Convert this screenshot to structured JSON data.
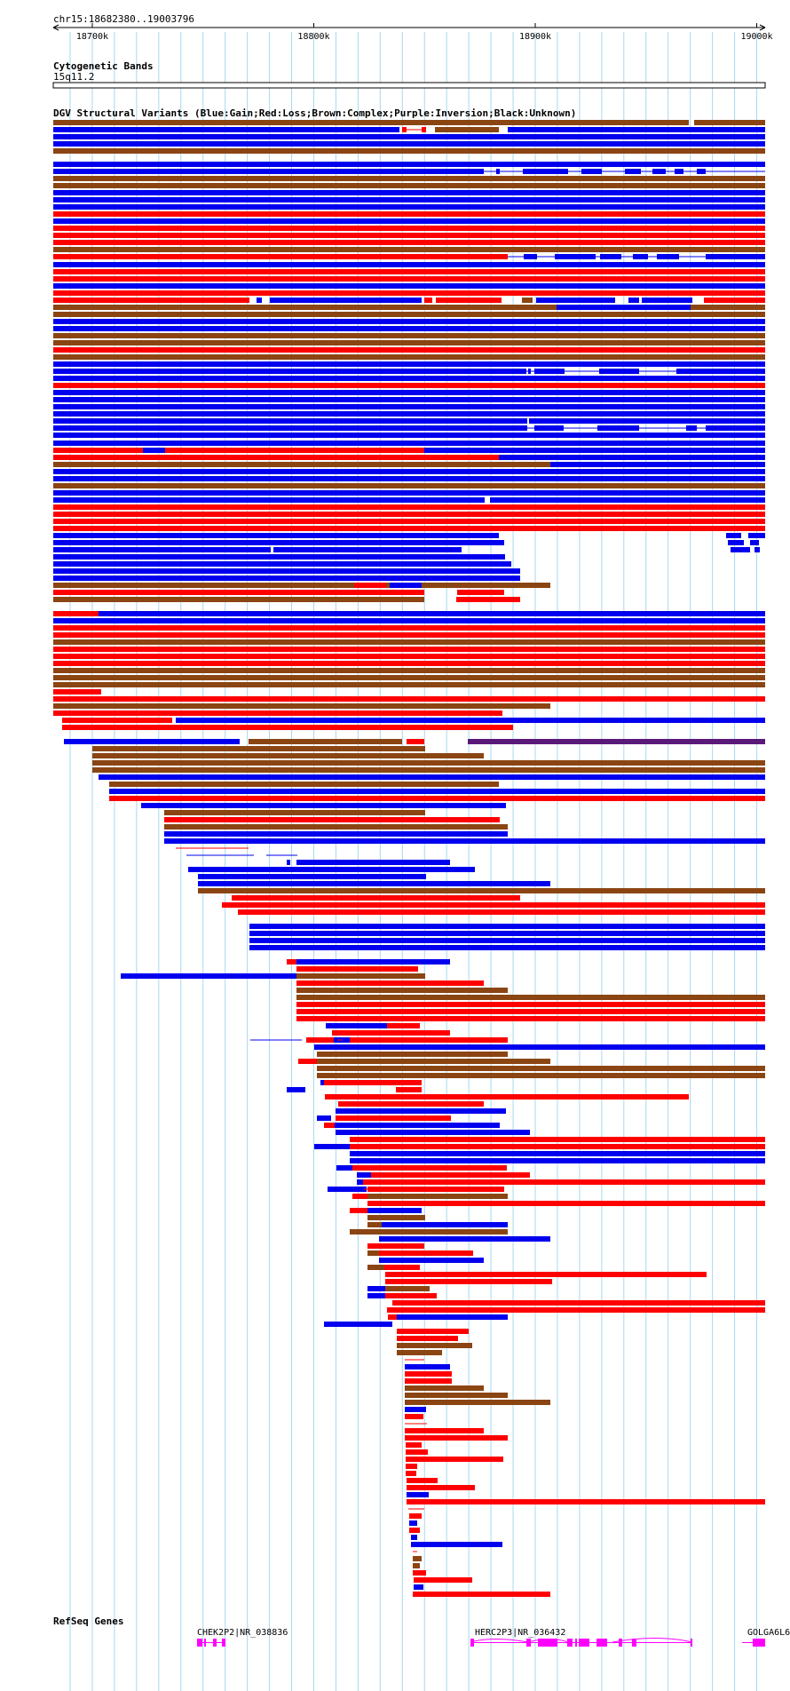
{
  "region": "chr15:18682380..19003796",
  "scale": {
    "start": 18682380,
    "end": 19003796,
    "ticks": [
      {
        "value": 18700000,
        "label": "18700k"
      },
      {
        "value": 18800000,
        "label": "18800k"
      },
      {
        "value": 18900000,
        "label": "18900k"
      },
      {
        "value": 19000000,
        "label": "19000k"
      }
    ]
  },
  "tracks": {
    "cytoband": {
      "title": "Cytogenetic Bands",
      "band": "15q11.2"
    },
    "dgv": {
      "title": "DGV Structural Variants (Blue:Gain;Red:Loss;Brown:Complex;Purple:Inversion;Black:Unknown)"
    },
    "refseq": {
      "title": "RefSeq Genes"
    }
  },
  "colors": {
    "gain": "#0000ee",
    "loss": "#ff0000",
    "complex": "#8b4513",
    "inversion": "#5a1a7a",
    "unknown": "#000000",
    "gene": "#ff00ff",
    "grid": "#a8d8f0"
  },
  "genes": [
    {
      "label": "CHEK2P2|NR_038836"
    },
    {
      "label": "HERC2P3|NR_036432"
    },
    {
      "label": "GOLGA6L6"
    }
  ]
}
